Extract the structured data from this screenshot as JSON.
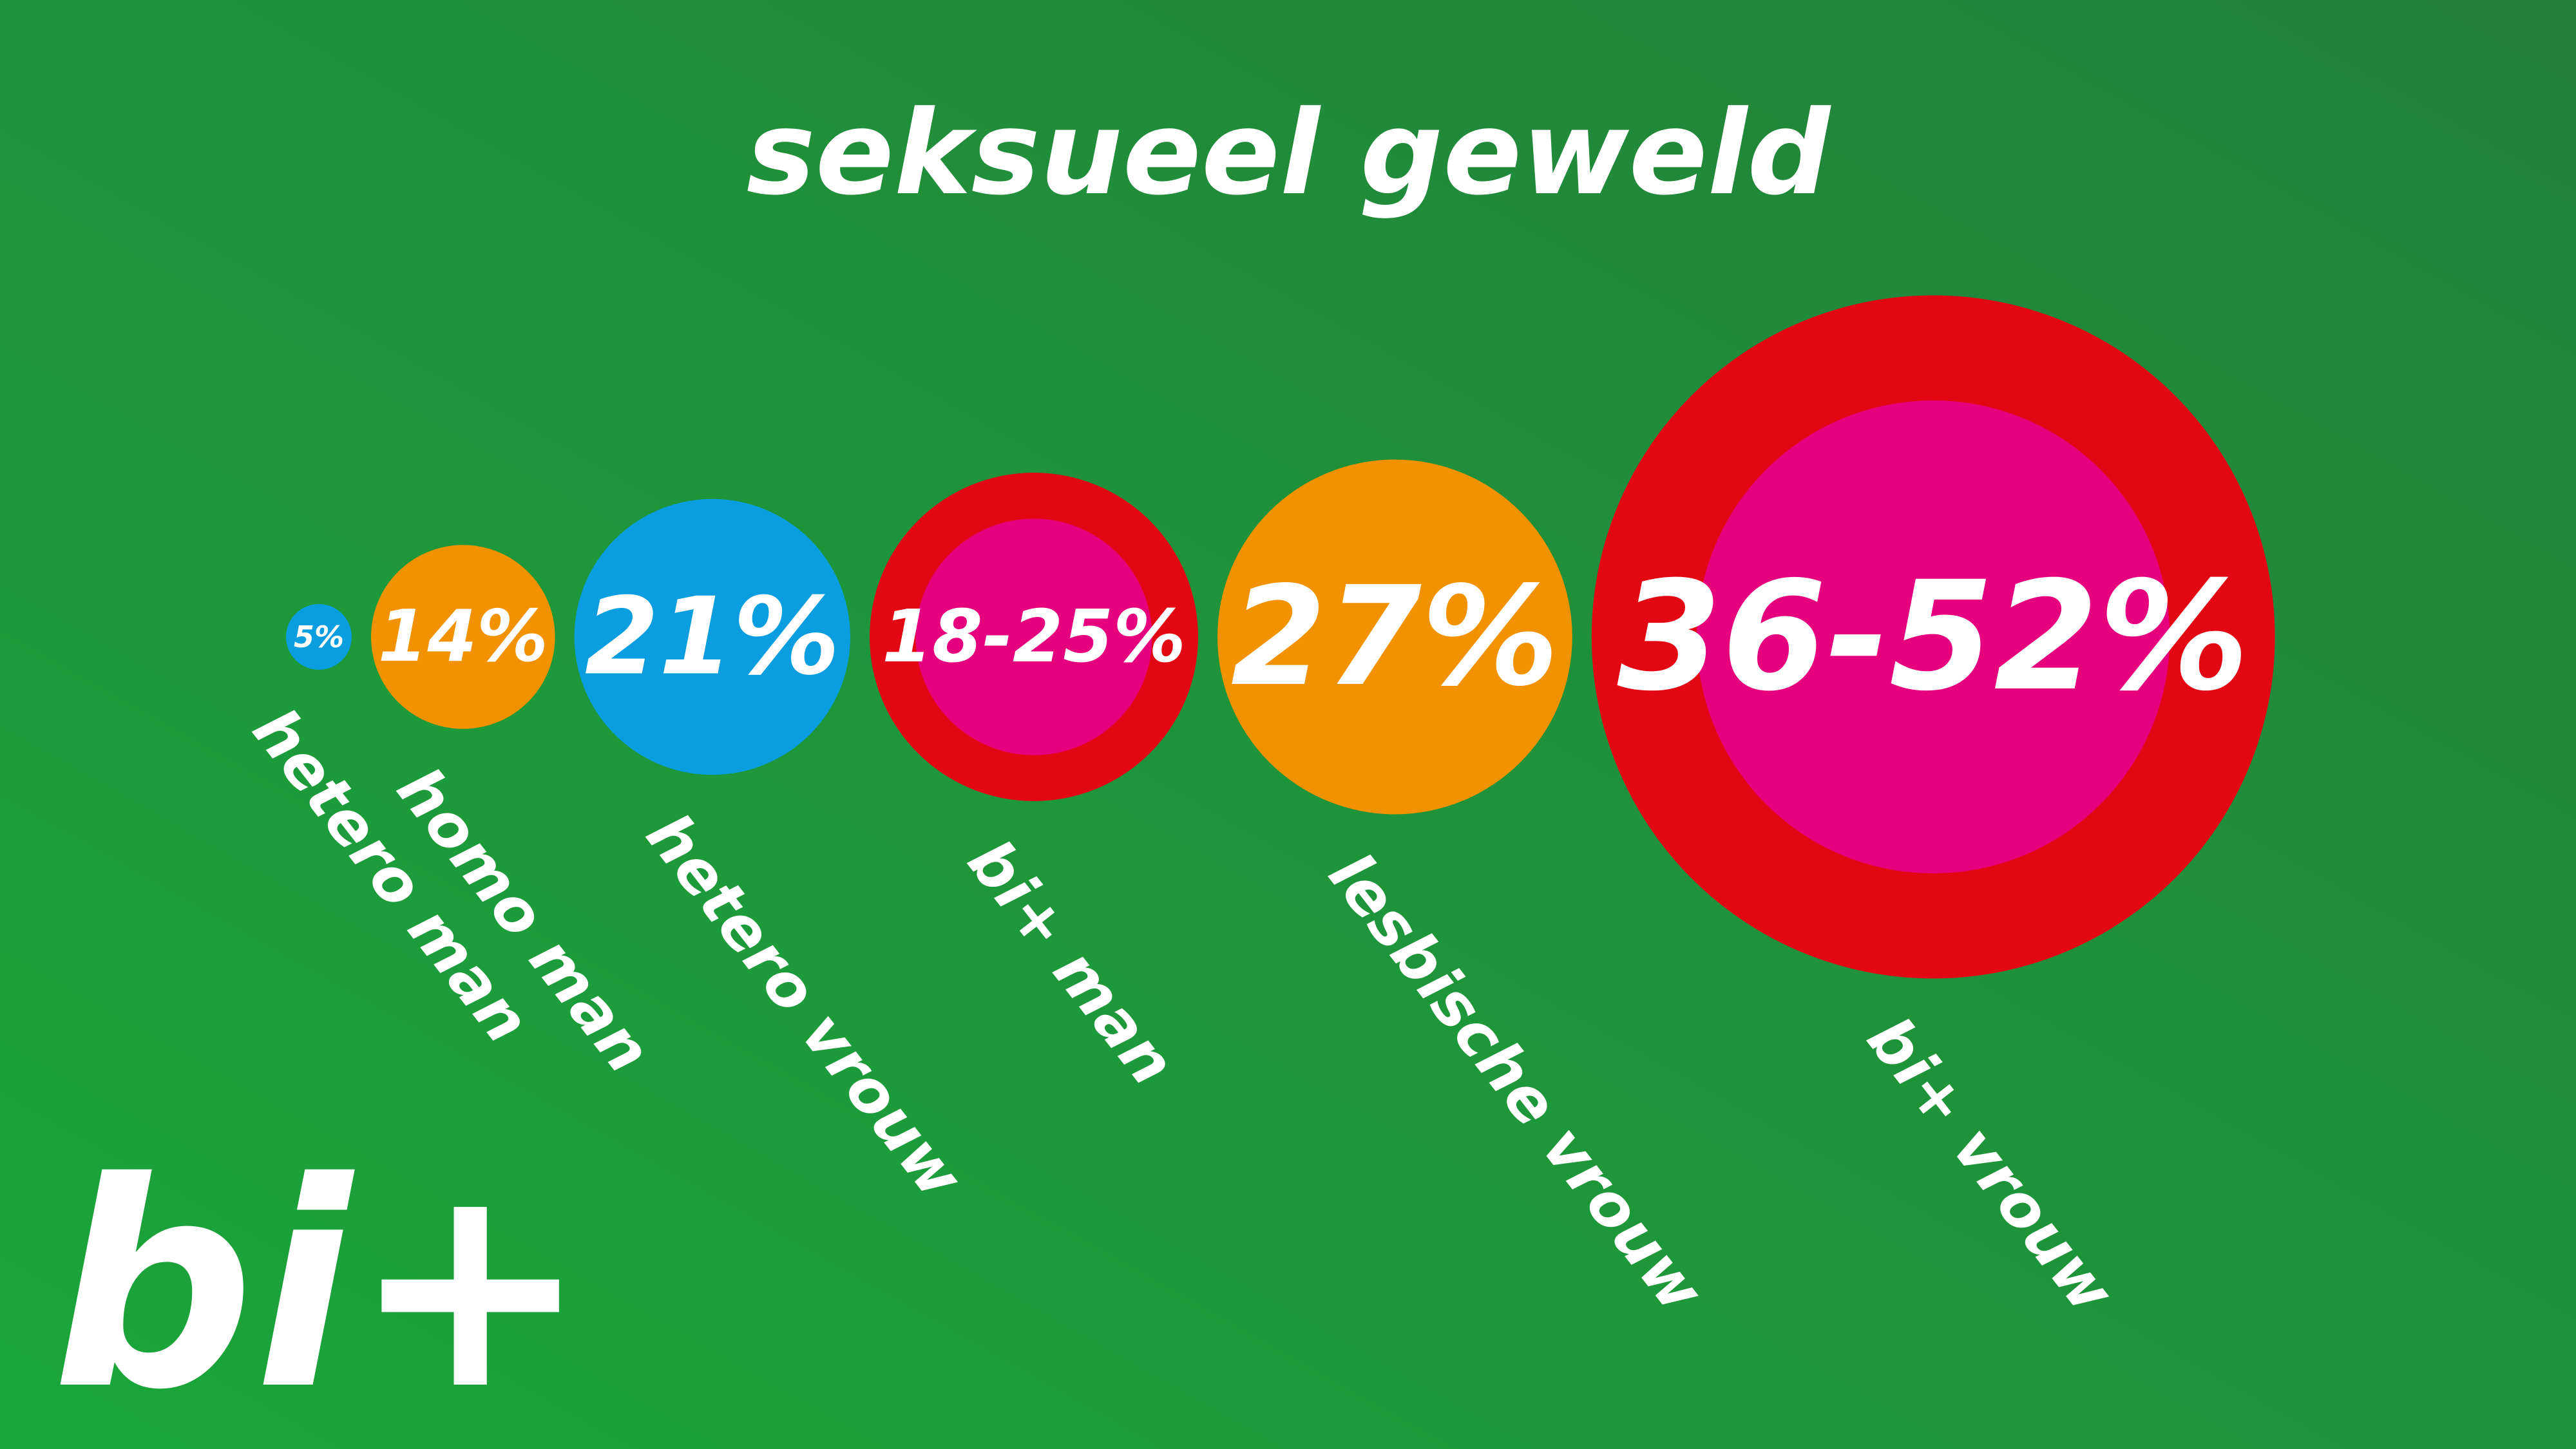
{
  "chart_data": {
    "type": "bubble",
    "title": "seksueel geweld",
    "categories": [
      "hetero man",
      "homo man",
      "hetero vrouw",
      "bi+ man",
      "lesbische vrouw",
      "bi+ vrouw"
    ],
    "values": [
      5,
      14,
      21,
      [
        18,
        25
      ],
      27,
      [
        36,
        52
      ]
    ],
    "value_labels": [
      "5%",
      "14%",
      "21%",
      "18-25%",
      "27%",
      "36-52%"
    ],
    "colors": [
      "#0a9ee0",
      "#f39200",
      "#0a9ee0",
      [
        "#e6007e",
        "#e30613"
      ],
      "#f39200",
      [
        "#e6007e",
        "#e30613"
      ]
    ]
  },
  "logo": "bi+"
}
